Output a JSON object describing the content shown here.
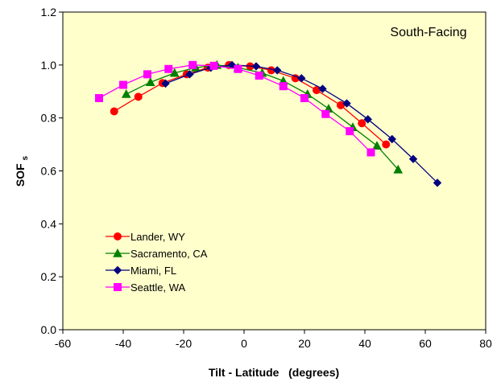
{
  "chart_data": {
    "type": "line",
    "title": "",
    "annotation": "South-Facing",
    "xlabel": "Tilt - Latitude   (degrees)",
    "ylabel_main": "SOF",
    "ylabel_sub": "s",
    "xlim": [
      -60,
      80
    ],
    "ylim": [
      0.0,
      1.2
    ],
    "x_ticks": [
      -60,
      -40,
      -20,
      0,
      20,
      40,
      60,
      80
    ],
    "y_ticks": [
      0.0,
      0.2,
      0.4,
      0.6,
      0.8,
      1.0,
      1.2
    ],
    "x_tick_labels": [
      "-60",
      "-40",
      "-20",
      "0",
      "20",
      "40",
      "60",
      "80"
    ],
    "y_tick_labels": [
      "0.0",
      "0.2",
      "0.4",
      "0.6",
      "0.8",
      "1.0",
      "1.2"
    ],
    "grid": false,
    "plot_background": "#FFFFCC",
    "legend_position": "lower-left",
    "series": [
      {
        "name": "Lander, WY",
        "color": "#FF0000",
        "marker": "circle",
        "x": [
          -43,
          -35,
          -27,
          -19,
          -12,
          -5,
          2,
          9,
          17,
          24,
          32,
          39,
          47
        ],
        "y": [
          0.825,
          0.88,
          0.932,
          0.965,
          0.99,
          1.0,
          0.995,
          0.98,
          0.95,
          0.905,
          0.848,
          0.78,
          0.7
        ]
      },
      {
        "name": "Sacramento, CA",
        "color": "#008000",
        "marker": "triangle",
        "x": [
          -39,
          -31,
          -23,
          -16,
          -9,
          -2,
          6,
          13,
          21,
          28,
          36,
          44,
          51
        ],
        "y": [
          0.89,
          0.935,
          0.97,
          0.99,
          1.0,
          0.99,
          0.97,
          0.94,
          0.89,
          0.835,
          0.765,
          0.695,
          0.605
        ]
      },
      {
        "name": "Miami, FL",
        "color": "#000080",
        "marker": "diamond",
        "x": [
          -26,
          -18,
          -11,
          -4,
          4,
          11,
          19,
          26,
          34,
          41,
          49,
          56,
          64
        ],
        "y": [
          0.93,
          0.965,
          0.99,
          1.0,
          0.995,
          0.98,
          0.95,
          0.91,
          0.855,
          0.795,
          0.72,
          0.645,
          0.555
        ]
      },
      {
        "name": "Seattle, WA",
        "color": "#FF00FF",
        "marker": "square",
        "x": [
          -48,
          -40,
          -32,
          -25,
          -17,
          -10,
          -2,
          5,
          13,
          20,
          27,
          35,
          42
        ],
        "y": [
          0.875,
          0.925,
          0.965,
          0.985,
          1.0,
          0.997,
          0.985,
          0.96,
          0.92,
          0.875,
          0.815,
          0.75,
          0.67
        ]
      }
    ]
  }
}
